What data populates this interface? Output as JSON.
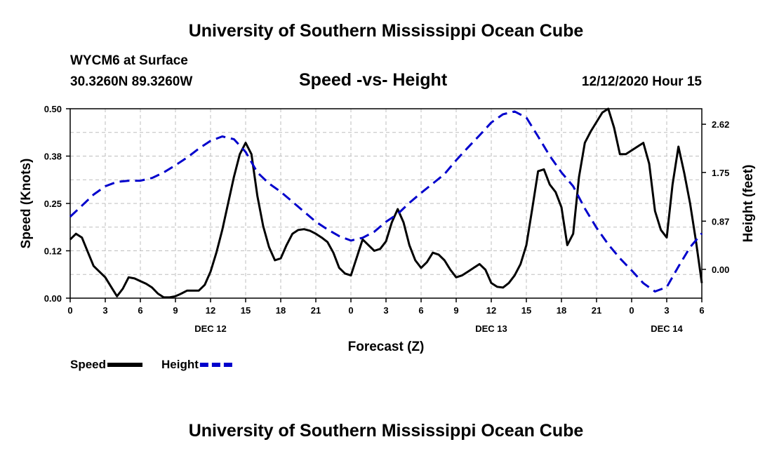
{
  "header": {
    "title": "University of Southern Mississippi Ocean Cube",
    "station": "WYCM6 at Surface",
    "coords": "30.3260N 89.3260W",
    "subtitle": "Speed -vs- Height",
    "datetime": "12/12/2020 Hour 15"
  },
  "footer": {
    "title": "University of Southern Mississippi Ocean Cube"
  },
  "chart_data": {
    "type": "line",
    "title": "Speed -vs- Height",
    "xlabel": "Forecast (Z)",
    "ylabel": "Speed (Knots)",
    "y2label": "Height (feet)",
    "x_range": [
      0,
      54
    ],
    "ylim": [
      0,
      0.5
    ],
    "y2lim": [
      -0.52,
      2.9
    ],
    "x_ticks": [
      {
        "x": 0,
        "label": "0"
      },
      {
        "x": 3,
        "label": "3"
      },
      {
        "x": 6,
        "label": "6"
      },
      {
        "x": 9,
        "label": "9"
      },
      {
        "x": 12,
        "label": "12"
      },
      {
        "x": 15,
        "label": "15"
      },
      {
        "x": 18,
        "label": "18"
      },
      {
        "x": 21,
        "label": "21"
      },
      {
        "x": 24,
        "label": "0"
      },
      {
        "x": 27,
        "label": "3"
      },
      {
        "x": 30,
        "label": "6"
      },
      {
        "x": 33,
        "label": "9"
      },
      {
        "x": 36,
        "label": "12"
      },
      {
        "x": 39,
        "label": "15"
      },
      {
        "x": 42,
        "label": "18"
      },
      {
        "x": 45,
        "label": "21"
      },
      {
        "x": 48,
        "label": "0"
      },
      {
        "x": 51,
        "label": "3"
      },
      {
        "x": 54,
        "label": "6"
      }
    ],
    "date_labels": [
      {
        "x": 12,
        "label": "DEC 12"
      },
      {
        "x": 36,
        "label": "DEC 13"
      },
      {
        "x": 51,
        "label": "DEC 14"
      }
    ],
    "y_ticks": [
      {
        "value": 0.0,
        "label": "0.00"
      },
      {
        "value": 0.125,
        "label": "0.12"
      },
      {
        "value": 0.25,
        "label": "0.25"
      },
      {
        "value": 0.375,
        "label": "0.38"
      },
      {
        "value": 0.5,
        "label": "0.50"
      }
    ],
    "y2_ticks": [
      {
        "value": 0.0,
        "label": "0.00"
      },
      {
        "value": 0.87,
        "label": "0.87"
      },
      {
        "value": 1.75,
        "label": "1.75"
      },
      {
        "value": 2.62,
        "label": "2.62"
      }
    ],
    "series": [
      {
        "name": "Speed",
        "axis": "left",
        "color": "#000000",
        "dash": "solid",
        "x": [
          0,
          0.5,
          1,
          2,
          3,
          3.5,
          4,
          4.5,
          5,
          5.5,
          6,
          6.5,
          7,
          7.5,
          8,
          8.5,
          9,
          9.5,
          10,
          10.5,
          11,
          11.5,
          12,
          12.5,
          13,
          13.5,
          14,
          14.5,
          15,
          15.5,
          16,
          16.5,
          17,
          17.5,
          18,
          18.5,
          19,
          19.5,
          20,
          20.5,
          21,
          21.5,
          22,
          22.5,
          23,
          23.5,
          24,
          25,
          26,
          26.5,
          27,
          27.5,
          28,
          28.5,
          29,
          29.5,
          30,
          30.5,
          31,
          31.5,
          32,
          32.5,
          33,
          33.5,
          34,
          34.5,
          35,
          35.5,
          36,
          36.5,
          37,
          37.5,
          38,
          38.5,
          39,
          39.5,
          40,
          40.5,
          41,
          41.5,
          42,
          42.5,
          43,
          43.5,
          44,
          44.5,
          45,
          45.5,
          46,
          46.5,
          47,
          47.5,
          48,
          48.5,
          49,
          49.5,
          50,
          50.5,
          51,
          51.5,
          52,
          52.5,
          53,
          53.5,
          54
        ],
        "values": [
          0.155,
          0.17,
          0.16,
          0.085,
          0.055,
          0.03,
          0.005,
          0.025,
          0.055,
          0.052,
          0.045,
          0.038,
          0.028,
          0.012,
          0.002,
          0.002,
          0.005,
          0.012,
          0.02,
          0.02,
          0.02,
          0.035,
          0.07,
          0.12,
          0.18,
          0.25,
          0.32,
          0.38,
          0.41,
          0.38,
          0.27,
          0.19,
          0.135,
          0.1,
          0.105,
          0.14,
          0.17,
          0.18,
          0.182,
          0.178,
          0.17,
          0.16,
          0.148,
          0.12,
          0.08,
          0.065,
          0.06,
          0.155,
          0.125,
          0.13,
          0.15,
          0.2,
          0.235,
          0.2,
          0.14,
          0.1,
          0.08,
          0.095,
          0.12,
          0.115,
          0.1,
          0.075,
          0.055,
          0.06,
          0.07,
          0.08,
          0.09,
          0.075,
          0.04,
          0.03,
          0.028,
          0.04,
          0.06,
          0.09,
          0.14,
          0.235,
          0.335,
          0.34,
          0.3,
          0.28,
          0.24,
          0.14,
          0.17,
          0.32,
          0.41,
          0.44,
          0.465,
          0.49,
          0.5,
          0.45,
          0.38,
          0.38,
          0.39,
          0.4,
          0.41,
          0.355,
          0.23,
          0.18,
          0.16,
          0.3,
          0.4,
          0.33,
          0.25,
          0.15,
          0.04
        ]
      },
      {
        "name": "Height",
        "axis": "right",
        "color": "#0000cc",
        "dash": "dashed",
        "x": [
          0,
          1,
          2,
          3,
          4,
          5,
          6,
          7,
          8,
          9,
          10,
          11,
          12,
          13,
          14,
          15,
          16,
          17,
          18,
          19,
          20,
          21,
          22,
          23,
          24,
          25,
          26,
          27,
          28,
          29,
          30,
          31,
          32,
          33,
          34,
          35,
          36,
          37,
          38,
          39,
          40,
          41,
          42,
          43,
          44,
          45,
          46,
          47,
          48,
          49,
          50,
          51,
          52,
          53,
          54
        ],
        "values": [
          0.95,
          1.15,
          1.35,
          1.5,
          1.58,
          1.6,
          1.6,
          1.65,
          1.75,
          1.88,
          2.02,
          2.18,
          2.32,
          2.4,
          2.35,
          2.12,
          1.75,
          1.55,
          1.4,
          1.22,
          1.04,
          0.86,
          0.72,
          0.6,
          0.52,
          0.57,
          0.68,
          0.86,
          1.0,
          1.2,
          1.38,
          1.55,
          1.72,
          1.97,
          2.2,
          2.42,
          2.65,
          2.8,
          2.85,
          2.74,
          2.4,
          2.05,
          1.75,
          1.5,
          1.1,
          0.75,
          0.45,
          0.2,
          -0.02,
          -0.25,
          -0.4,
          -0.32,
          0.05,
          0.4,
          0.65
        ]
      }
    ],
    "legend": [
      {
        "label": "Speed",
        "color": "#000000",
        "dash": "solid"
      },
      {
        "label": "Height",
        "color": "#0000cc",
        "dash": "dashed"
      }
    ]
  }
}
